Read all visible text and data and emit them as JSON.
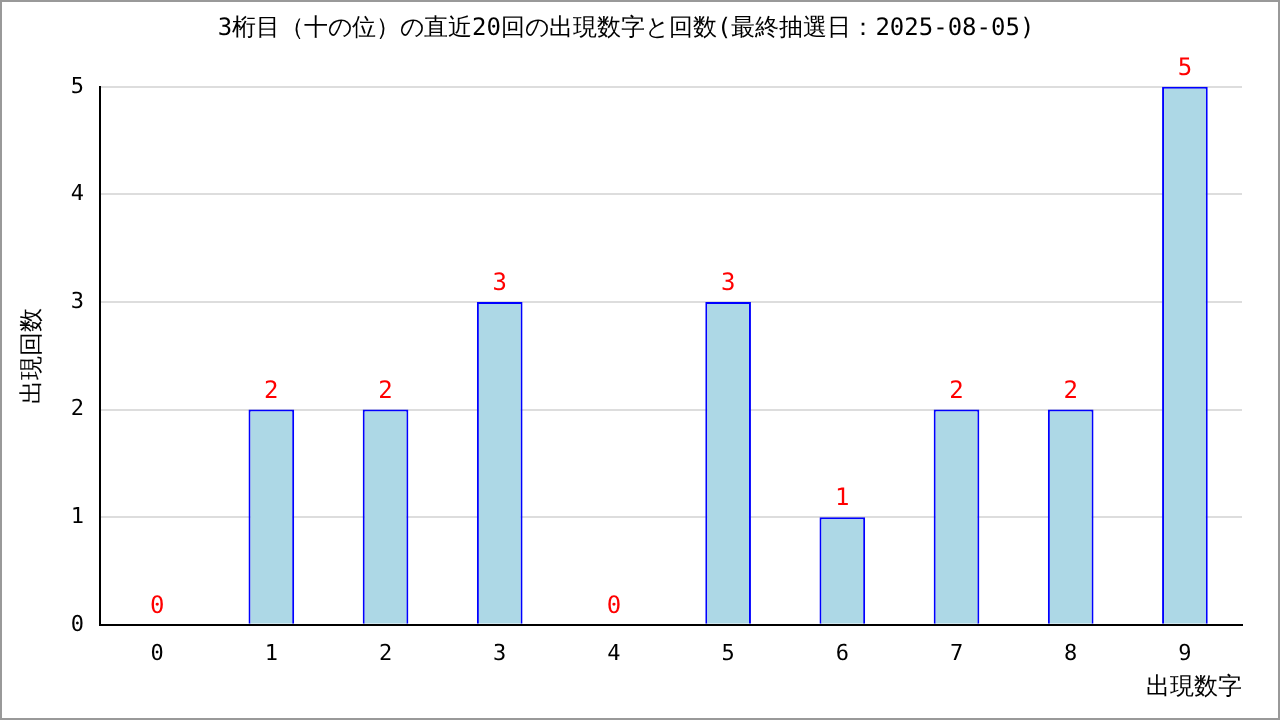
{
  "chart_data": {
    "type": "bar",
    "title": "3桁目（十の位）の直近20回の出現数字と回数(最終抽選日：2025-08-05)",
    "xlabel": "出現数字",
    "ylabel": "出現回数",
    "categories": [
      "0",
      "1",
      "2",
      "3",
      "4",
      "5",
      "6",
      "7",
      "8",
      "9"
    ],
    "values": [
      0,
      2,
      2,
      3,
      0,
      3,
      1,
      2,
      2,
      5
    ],
    "color": "#add8e6",
    "ylim": [
      0,
      5
    ],
    "yticks": [
      0,
      1,
      2,
      3,
      4,
      5
    ],
    "grid": "y",
    "data_labels": true,
    "legend": false
  }
}
